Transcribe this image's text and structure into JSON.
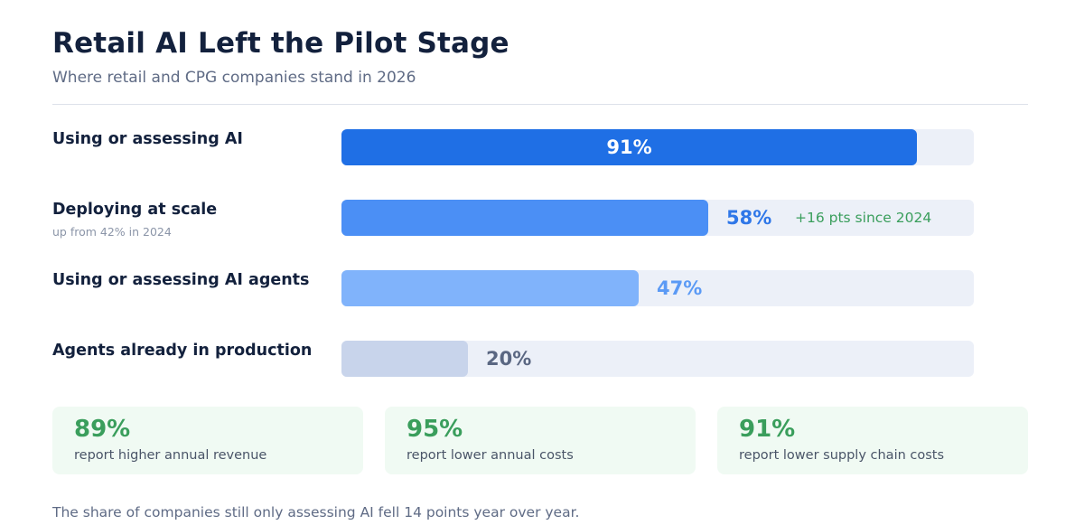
{
  "header": {
    "title": "Retail AI Left the Pilot Stage",
    "subtitle": "Where retail and CPG companies stand in 2026"
  },
  "chart_data": {
    "type": "bar",
    "orientation": "horizontal",
    "title": "Retail AI Left the Pilot Stage",
    "subtitle": "Where retail and CPG companies stand in 2026",
    "categories": [
      "Using or assessing AI",
      "Deploying at scale",
      "Using or assessing AI agents",
      "Agents already in production"
    ],
    "values": [
      91,
      58,
      47,
      20
    ],
    "value_labels": [
      "91%",
      "58%",
      "47%",
      "20%"
    ],
    "unit": "%",
    "xlim": [
      0,
      100
    ],
    "grid": false,
    "bars": [
      {
        "label": "Using or assessing AI",
        "sublabel": "",
        "value": 91,
        "value_label": "91%",
        "note": "",
        "color": "#1f6fe5",
        "value_color": "#ffffff",
        "value_inside": true
      },
      {
        "label": "Deploying at scale",
        "sublabel": "up from 42% in 2024",
        "value": 58,
        "value_label": "58%",
        "note": "+16 pts since 2024",
        "color": "#4b8ff5",
        "value_color": "#2f77e8",
        "value_inside": false
      },
      {
        "label": "Using or assessing AI agents",
        "sublabel": "",
        "value": 47,
        "value_label": "47%",
        "note": "",
        "color": "#80b3fb",
        "value_color": "#5b9af5",
        "value_inside": false
      },
      {
        "label": "Agents already in production",
        "sublabel": "",
        "value": 20,
        "value_label": "20%",
        "note": "",
        "color": "#c8d4eb",
        "value_color": "#5a6782",
        "value_inside": false
      }
    ]
  },
  "stats": [
    {
      "value": "89%",
      "description": "report higher annual revenue"
    },
    {
      "value": "95%",
      "description": "report lower annual costs"
    },
    {
      "value": "91%",
      "description": "report lower supply chain costs"
    }
  ],
  "footnote": "The share of companies still only assessing AI fell 14 points year over year.",
  "colors": {
    "title": "#13213d",
    "track": "#ecf0f8",
    "positive": "#3a9e5c",
    "card_background": "#f0faf3"
  }
}
